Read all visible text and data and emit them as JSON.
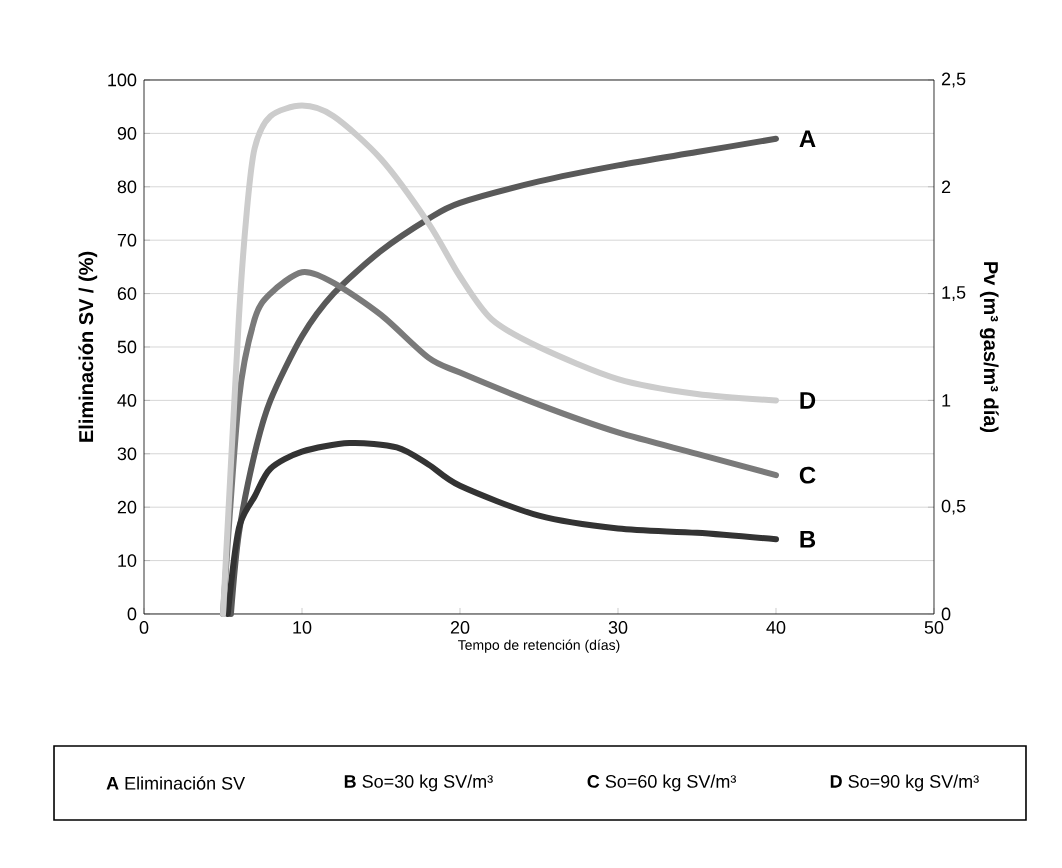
{
  "chart_data": {
    "type": "line",
    "xlabel": "Tempo de retención (días)",
    "ylabel": "Eliminación SV / (%)",
    "y2label": "Pv (m³ gas/m³ día)",
    "xlim": [
      0,
      50
    ],
    "xticks": [
      0,
      10,
      20,
      30,
      40,
      50
    ],
    "ylim": [
      0,
      100
    ],
    "yticks": [
      0,
      10,
      20,
      30,
      40,
      50,
      60,
      70,
      80,
      90,
      100
    ],
    "y2lim": [
      0,
      2.5
    ],
    "y2ticks": [
      0,
      {
        "value": 0.5,
        "label": "0,5"
      },
      1,
      {
        "value": 1.5,
        "label": "1,5"
      },
      2,
      {
        "value": 2.5,
        "label": "2,5"
      }
    ],
    "grid": "y",
    "marker": "none",
    "line_style": "solid",
    "series": [
      {
        "name": "A",
        "color": "#595959",
        "x": [
          5.5,
          6,
          7,
          8,
          10,
          12,
          15,
          18,
          20,
          25,
          30,
          35,
          40
        ],
        "values": [
          0,
          15,
          30,
          40,
          52,
          60,
          68,
          74,
          77,
          81,
          84,
          86.5,
          89
        ]
      },
      {
        "name": "B",
        "color": "#333333",
        "axis": "y2",
        "x": [
          5.3,
          6,
          7,
          8,
          10,
          13,
          16,
          18,
          20,
          25,
          30,
          35,
          40
        ],
        "values": [
          0,
          0.4,
          0.55,
          0.68,
          0.76,
          0.8,
          0.78,
          0.7,
          0.6,
          0.46,
          0.4,
          0.38,
          0.35
        ]
      },
      {
        "name": "C",
        "color": "#7a7a7a",
        "axis": "y2",
        "x": [
          5,
          6,
          7,
          8,
          10,
          12,
          15,
          18,
          20,
          25,
          30,
          35,
          40
        ],
        "values": [
          0,
          1.0,
          1.38,
          1.5,
          1.6,
          1.55,
          1.4,
          1.2,
          1.13,
          0.98,
          0.85,
          0.75,
          0.65
        ]
      },
      {
        "name": "D",
        "color": "#cccccc",
        "axis": "y2",
        "x": [
          5,
          6,
          6.5,
          7,
          8,
          10,
          12,
          15,
          18,
          20,
          22,
          25,
          30,
          35,
          40
        ],
        "values": [
          0,
          1.38,
          1.88,
          2.18,
          2.33,
          2.38,
          2.33,
          2.13,
          1.83,
          1.58,
          1.38,
          1.25,
          1.1,
          1.03,
          1.0
        ]
      }
    ],
    "annotations": [
      "**A** Eliminación SV",
      "**B** So=30 kg SV/m³",
      "**C** So=60 kg SV/m³",
      "**D** So=90 kg SV/m³"
    ]
  }
}
